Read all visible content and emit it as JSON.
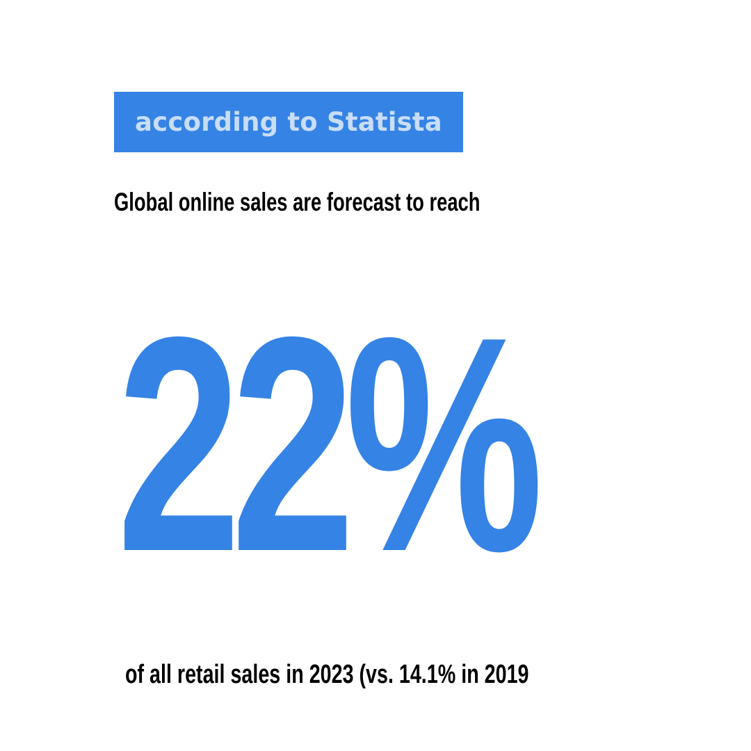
{
  "colors": {
    "accent": "#3583E5",
    "badge_text": "#C8DDF7",
    "body_text": "#000000",
    "background": "#FFFFFF"
  },
  "source_badge": {
    "label": "according to Statista"
  },
  "headline": {
    "text": "Global online sales are forecast to reach"
  },
  "stat": {
    "value": "22%"
  },
  "footer": {
    "text": "of all retail sales in 2023 (vs. 14.1% in 2019"
  }
}
